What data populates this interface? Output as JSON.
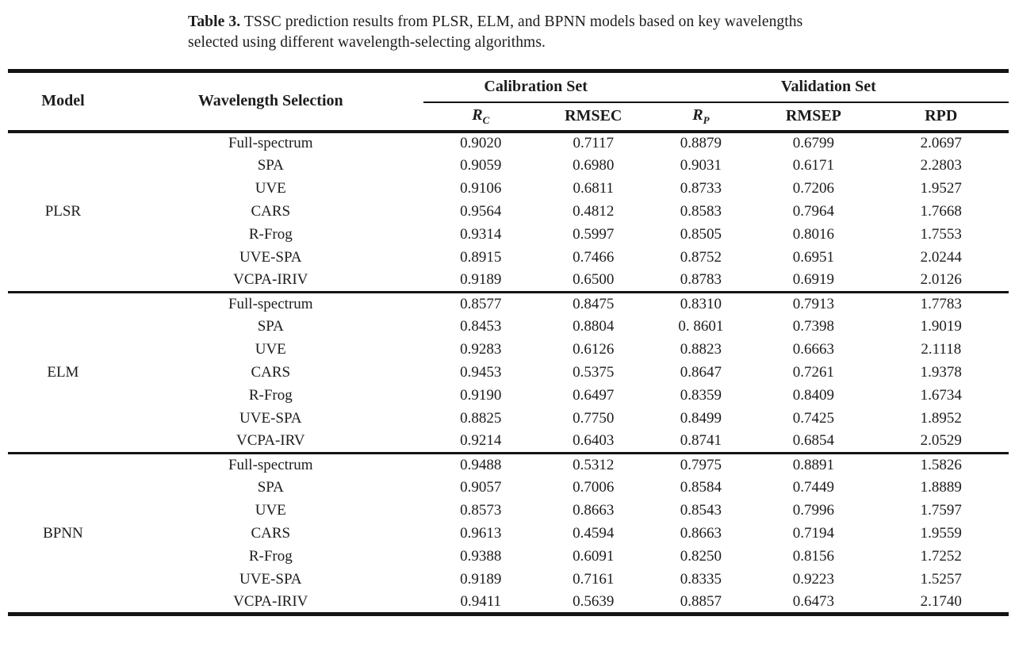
{
  "colors": {
    "text": "#1c1c1c",
    "rule": "#141414",
    "bg": "#ffffff"
  },
  "caption": {
    "label": "Table 3.",
    "line1_rest": "TSSC prediction results from PLSR, ELM, and BPNN models based on key wavelengths",
    "line2": "selected using different wavelength-selecting algorithms."
  },
  "table": {
    "col_headers": {
      "model": "Model",
      "wavelength_selection": "Wavelength Selection",
      "calibration_set": "Calibration Set",
      "validation_set": "Validation Set",
      "rc_base": "R",
      "rc_sub": "C",
      "rmsec": "RMSEC",
      "rp_base": "R",
      "rp_sub": "P",
      "rmsep": "RMSEP",
      "rpd": "RPD"
    },
    "sections": [
      {
        "model": "PLSR",
        "rows": [
          {
            "method": "Full-spectrum",
            "rc": "0.9020",
            "rmsec": "0.7117",
            "rp": "0.8879",
            "rmsep": "0.6799",
            "rpd": "2.0697"
          },
          {
            "method": "SPA",
            "rc": "0.9059",
            "rmsec": "0.6980",
            "rp": "0.9031",
            "rmsep": "0.6171",
            "rpd": "2.2803"
          },
          {
            "method": "UVE",
            "rc": "0.9106",
            "rmsec": "0.6811",
            "rp": "0.8733",
            "rmsep": "0.7206",
            "rpd": "1.9527"
          },
          {
            "method": "CARS",
            "rc": "0.9564",
            "rmsec": "0.4812",
            "rp": "0.8583",
            "rmsep": "0.7964",
            "rpd": "1.7668"
          },
          {
            "method": "R-Frog",
            "rc": "0.9314",
            "rmsec": "0.5997",
            "rp": "0.8505",
            "rmsep": "0.8016",
            "rpd": "1.7553"
          },
          {
            "method": "UVE-SPA",
            "rc": "0.8915",
            "rmsec": "0.7466",
            "rp": "0.8752",
            "rmsep": "0.6951",
            "rpd": "2.0244"
          },
          {
            "method": "VCPA-IRIV",
            "rc": "0.9189",
            "rmsec": "0.6500",
            "rp": "0.8783",
            "rmsep": "0.6919",
            "rpd": "2.0126"
          }
        ]
      },
      {
        "model": "ELM",
        "rows": [
          {
            "method": "Full-spectrum",
            "rc": "0.8577",
            "rmsec": "0.8475",
            "rp": "0.8310",
            "rmsep": "0.7913",
            "rpd": "1.7783"
          },
          {
            "method": "SPA",
            "rc": "0.8453",
            "rmsec": "0.8804",
            "rp": "0. 8601",
            "rmsep": "0.7398",
            "rpd": "1.9019"
          },
          {
            "method": "UVE",
            "rc": "0.9283",
            "rmsec": "0.6126",
            "rp": "0.8823",
            "rmsep": "0.6663",
            "rpd": "2.1118"
          },
          {
            "method": "CARS",
            "rc": "0.9453",
            "rmsec": "0.5375",
            "rp": "0.8647",
            "rmsep": "0.7261",
            "rpd": "1.9378"
          },
          {
            "method": "R-Frog",
            "rc": "0.9190",
            "rmsec": "0.6497",
            "rp": "0.8359",
            "rmsep": "0.8409",
            "rpd": "1.6734"
          },
          {
            "method": "UVE-SPA",
            "rc": "0.8825",
            "rmsec": "0.7750",
            "rp": "0.8499",
            "rmsep": "0.7425",
            "rpd": "1.8952"
          },
          {
            "method": "VCPA-IRV",
            "rc": "0.9214",
            "rmsec": "0.6403",
            "rp": "0.8741",
            "rmsep": "0.6854",
            "rpd": "2.0529"
          }
        ]
      },
      {
        "model": "BPNN",
        "rows": [
          {
            "method": "Full-spectrum",
            "rc": "0.9488",
            "rmsec": "0.5312",
            "rp": "0.7975",
            "rmsep": "0.8891",
            "rpd": "1.5826"
          },
          {
            "method": "SPA",
            "rc": "0.9057",
            "rmsec": "0.7006",
            "rp": "0.8584",
            "rmsep": "0.7449",
            "rpd": "1.8889"
          },
          {
            "method": "UVE",
            "rc": "0.8573",
            "rmsec": "0.8663",
            "rp": "0.8543",
            "rmsep": "0.7996",
            "rpd": "1.7597"
          },
          {
            "method": "CARS",
            "rc": "0.9613",
            "rmsec": "0.4594",
            "rp": "0.8663",
            "rmsep": "0.7194",
            "rpd": "1.9559"
          },
          {
            "method": "R-Frog",
            "rc": "0.9388",
            "rmsec": "0.6091",
            "rp": "0.8250",
            "rmsep": "0.8156",
            "rpd": "1.7252"
          },
          {
            "method": "UVE-SPA",
            "rc": "0.9189",
            "rmsec": "0.7161",
            "rp": "0.8335",
            "rmsep": "0.9223",
            "rpd": "1.5257"
          },
          {
            "method": "VCPA-IRIV",
            "rc": "0.9411",
            "rmsec": "0.5639",
            "rp": "0.8857",
            "rmsep": "0.6473",
            "rpd": "2.1740"
          }
        ]
      }
    ]
  }
}
